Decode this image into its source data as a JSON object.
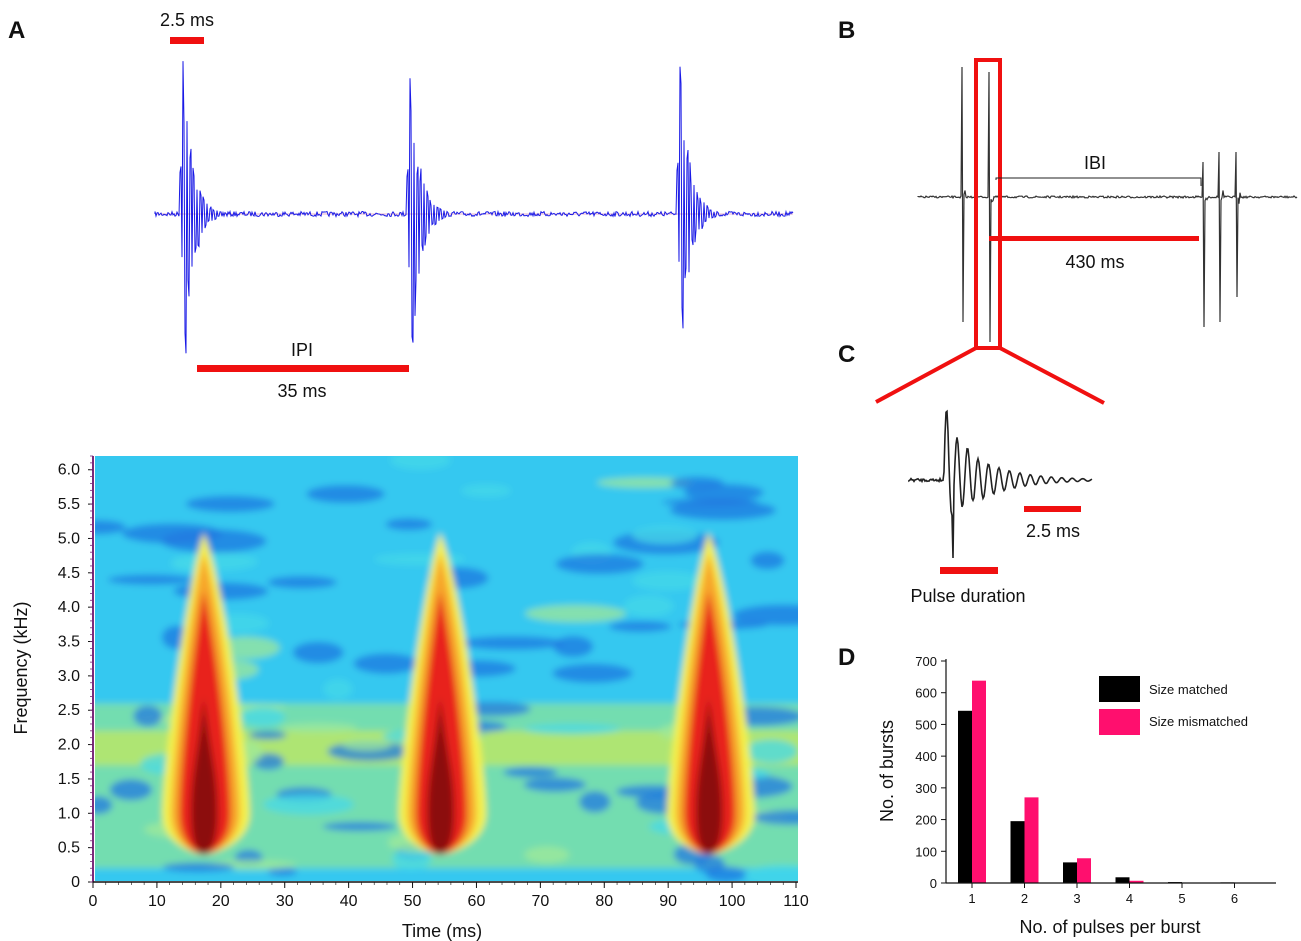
{
  "panels": {
    "a": "A",
    "b": "B",
    "c": "C",
    "d": "D"
  },
  "colors": {
    "red": "#f01010",
    "blue": "#1a1ae6",
    "black": "#000000",
    "pink": "#ff0f6e",
    "gray": "#444444"
  },
  "panel_a_trace": {
    "scale_label": "2.5 ms",
    "ipi_label": "IPI",
    "ipi_value": "35 ms"
  },
  "panel_b": {
    "ibi_label": "IBI",
    "ibi_value": "430 ms"
  },
  "panel_c": {
    "scale_label": "2.5 ms",
    "pulse_label": "Pulse duration"
  },
  "chart_data": [
    {
      "type": "heatmap",
      "title": "",
      "xlabel": "Time (ms)",
      "ylabel": "Frequency (kHz)",
      "xlim": [
        0,
        110
      ],
      "ylim": [
        0,
        6.2
      ],
      "x_ticks": [
        "0",
        "10",
        "20",
        "30",
        "40",
        "50",
        "60",
        "70",
        "80",
        "90",
        "100",
        "110"
      ],
      "y_ticks": [
        "0",
        "0.5",
        "1.0",
        "1.5",
        "2.0",
        "2.5",
        "3.0",
        "3.5",
        "4.0",
        "4.5",
        "5.0",
        "5.5",
        "6.0"
      ],
      "pulse_centers_ms": [
        17,
        54,
        96
      ],
      "pulse_top_khz": 5.0,
      "colormap": "jet"
    },
    {
      "type": "bar",
      "title": "",
      "xlabel": "No. of pulses per burst",
      "ylabel": "No. of bursts",
      "categories": [
        "1",
        "2",
        "3",
        "4",
        "5",
        "6"
      ],
      "ylim": [
        0,
        700
      ],
      "y_ticks": [
        "0",
        "100",
        "200",
        "300",
        "400",
        "500",
        "600",
        "700"
      ],
      "legend_position": "top-right",
      "series": [
        {
          "name": "Size matched",
          "color": "#000000",
          "values": [
            543,
            195,
            65,
            18,
            3,
            2
          ]
        },
        {
          "name": "Size mismatched",
          "color": "#ff0f6e",
          "values": [
            638,
            270,
            78,
            7,
            0,
            0
          ]
        }
      ]
    }
  ]
}
